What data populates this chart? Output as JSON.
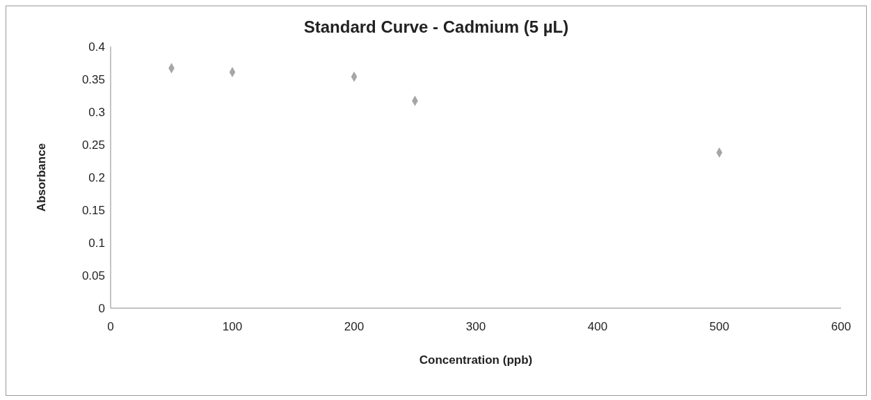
{
  "chart_data": {
    "type": "scatter",
    "title": "Standard Curve - Cadmium (5 µL)",
    "xlabel": "Concentration (ppb)",
    "ylabel": "Absorbance",
    "x": [
      50,
      100,
      200,
      250,
      500
    ],
    "series": [
      {
        "color": "#a6a6a6",
        "values": [
          0.367,
          0.361,
          0.354,
          0.317,
          0.238
        ]
      }
    ],
    "xlim": [
      0,
      600
    ],
    "xticks": [
      0,
      100,
      200,
      300,
      400,
      500,
      600
    ],
    "ylim": [
      0,
      0.4
    ],
    "yticks": [
      0,
      0.05,
      0.1,
      0.15,
      0.2,
      0.25,
      0.3,
      0.35,
      0.4
    ],
    "grid": false,
    "marker": "diamond"
  }
}
